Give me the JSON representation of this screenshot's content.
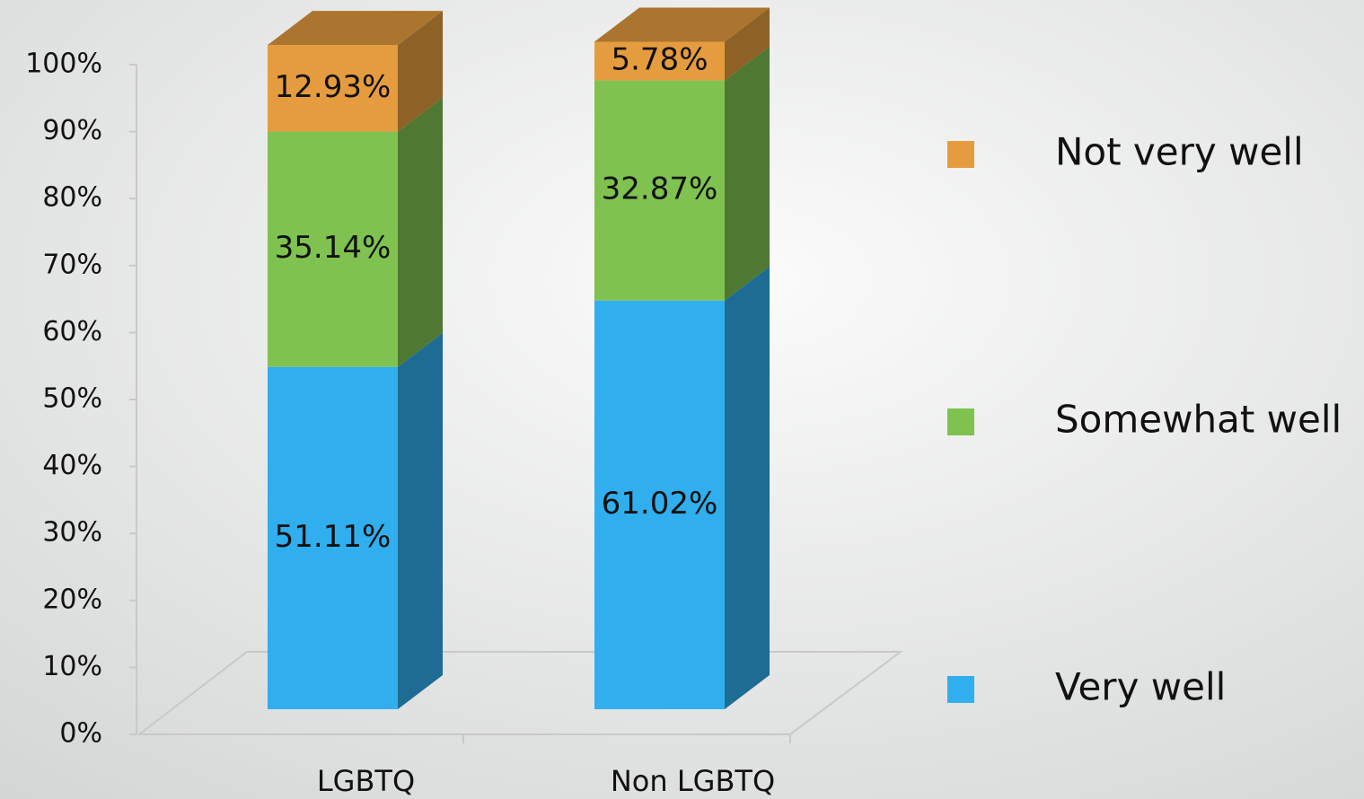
{
  "chart_data": {
    "type": "bar3d_stacked",
    "categories": [
      "LGBTQ",
      "Non LGBTQ"
    ],
    "series": [
      {
        "name": "Very well",
        "color": "#31aeed",
        "values": [
          51.11,
          61.02
        ],
        "value_labels": [
          "51.11%",
          "61.02%"
        ]
      },
      {
        "name": "Somewhat well",
        "color": "#7fc250",
        "values": [
          35.14,
          32.87
        ],
        "value_labels": [
          "35.14%",
          "32.87%"
        ]
      },
      {
        "name": "Not very well",
        "color": "#e59c3f",
        "values": [
          12.93,
          5.78
        ],
        "value_labels": [
          "12.93%",
          "5.78%"
        ]
      }
    ],
    "ylim": [
      0,
      100
    ],
    "yticks": [
      {
        "value": 0,
        "label": "0%"
      },
      {
        "value": 10,
        "label": "10%"
      },
      {
        "value": 20,
        "label": "20%"
      },
      {
        "value": 30,
        "label": "30%"
      },
      {
        "value": 40,
        "label": "40%"
      },
      {
        "value": 50,
        "label": "50%"
      },
      {
        "value": 60,
        "label": "60%"
      },
      {
        "value": 70,
        "label": "70%"
      },
      {
        "value": 80,
        "label": "80%"
      },
      {
        "value": 90,
        "label": "90%"
      },
      {
        "value": 100,
        "label": "100%"
      }
    ],
    "legend": "right"
  }
}
